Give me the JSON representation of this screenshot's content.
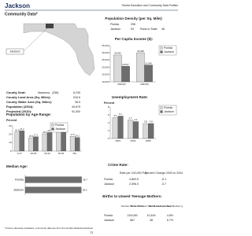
{
  "header": {
    "county": "Jackson",
    "source": "Florida Education and Community Data Profiles",
    "subtitle": "Community Data*"
  },
  "map": {
    "label": "Jackson"
  },
  "density": {
    "title": "Population Density (per Sq. Mile):",
    "rows": [
      [
        "Florida",
        "296"
      ],
      [
        "Jackson",
        "53"
      ]
    ],
    "rank_label": "Rank in State",
    "rank": "46"
  },
  "facts": {
    "rows": [
      {
        "label": "County Seat:",
        "name": "Marianna",
        "note": "(258)",
        "value": "6,230"
      },
      {
        "label": "County Land Area (Sq. Miles):",
        "value": "915.6"
      },
      {
        "label": "County Water Area (Sq. Miles):",
        "value": "38.5"
      },
      {
        "label": "Population (2004):",
        "value": "49,675"
      },
      {
        "label": "Projected (2010):",
        "value": "51,000"
      }
    ]
  },
  "chart_data": [
    {
      "type": "bar",
      "title": "Per Capita Income ($):",
      "categories": [
        "2003(P)",
        "2004(P)"
      ],
      "series": [
        {
          "name": "Florida",
          "color": "#d9d9d9",
          "values": [
            28493,
            30098
          ],
          "value_labels": [
            "28,493",
            "30,098"
          ]
        },
        {
          "name": "Jackson",
          "color": "#6e6e6e",
          "values": [
            20817,
            21640
          ],
          "value_labels": [
            "20,817",
            "21,640"
          ]
        }
      ],
      "ylim": [
        10000,
        35000
      ],
      "yticks": [
        {
          "value": 10000,
          "label": "10,000"
        },
        {
          "value": 15000,
          "label": "15,000"
        },
        {
          "value": 20000,
          "label": "20,000"
        },
        {
          "value": 25000,
          "label": "25,000"
        },
        {
          "value": 30000,
          "label": "30,000"
        },
        {
          "value": 35000,
          "label": "35,000"
        }
      ]
    },
    {
      "type": "bar",
      "title": "Unemployment Rate:",
      "y_label": "Percent",
      "categories": [
        "2003",
        "2004",
        "2005"
      ],
      "series": [
        {
          "name": "Florida",
          "color": "#d9d9d9",
          "values": [
            5.3,
            4.7,
            3.8
          ]
        },
        {
          "name": "Jackson",
          "color": "#6e6e6e",
          "values": [
            5.7,
            4.3,
            3.8
          ]
        }
      ],
      "ylim": [
        0,
        8
      ],
      "yticks": [
        0,
        2,
        4,
        6,
        8
      ]
    },
    {
      "type": "bar",
      "title": "Population by Age Range:",
      "y_label": "Percent",
      "categories": [
        "0-17",
        "18-29",
        "30-44",
        "45-64",
        "65+"
      ],
      "series": [
        {
          "name": "Florida",
          "color": "#d9d9d9",
          "values": [
            22.8,
            15.9,
            20.6,
            26.2,
            17.6
          ]
        },
        {
          "name": "Jackson",
          "color": "#6e6e6e",
          "values": [
            24.2,
            17.1,
            22.1,
            26.4,
            16.1
          ]
        }
      ],
      "ylim": [
        0,
        30
      ],
      "yticks": [
        0,
        10,
        20,
        30
      ]
    },
    {
      "type": "hbar",
      "title": "Median Age:",
      "categories": [
        "Florida",
        "Jackson"
      ],
      "values": [
        38.7,
        38.5
      ],
      "color": "#6e6e6e",
      "xlim": [
        0,
        40
      ]
    }
  ],
  "crime": {
    "title": "Crime Rate:",
    "columns": [
      "Rate per 100,000 Pop.",
      "Percent Change 2003 to 2004"
    ],
    "rows": [
      [
        "Florida",
        "4,863.5",
        "-6.1"
      ],
      [
        "Jackson",
        "2,596.0",
        "-5.7"
      ]
    ]
  },
  "births": {
    "title": "Births to Unwed Teenage Mothers:",
    "columns": [
      "Number of Live Births",
      "Births to Unwed Teen Mothers (number)",
      "Births to Unwed Teen Mothers (percent)"
    ],
    "rows": [
      [
        "Florida",
        "218,045",
        "10,449",
        "4.8%"
      ],
      [
        "Jackson",
        "567",
        "38",
        "6.7%"
      ]
    ]
  },
  "footnote": "*Unless otherwise indicated, community data are from the Florida Statistical Abstract",
  "page": "73"
}
